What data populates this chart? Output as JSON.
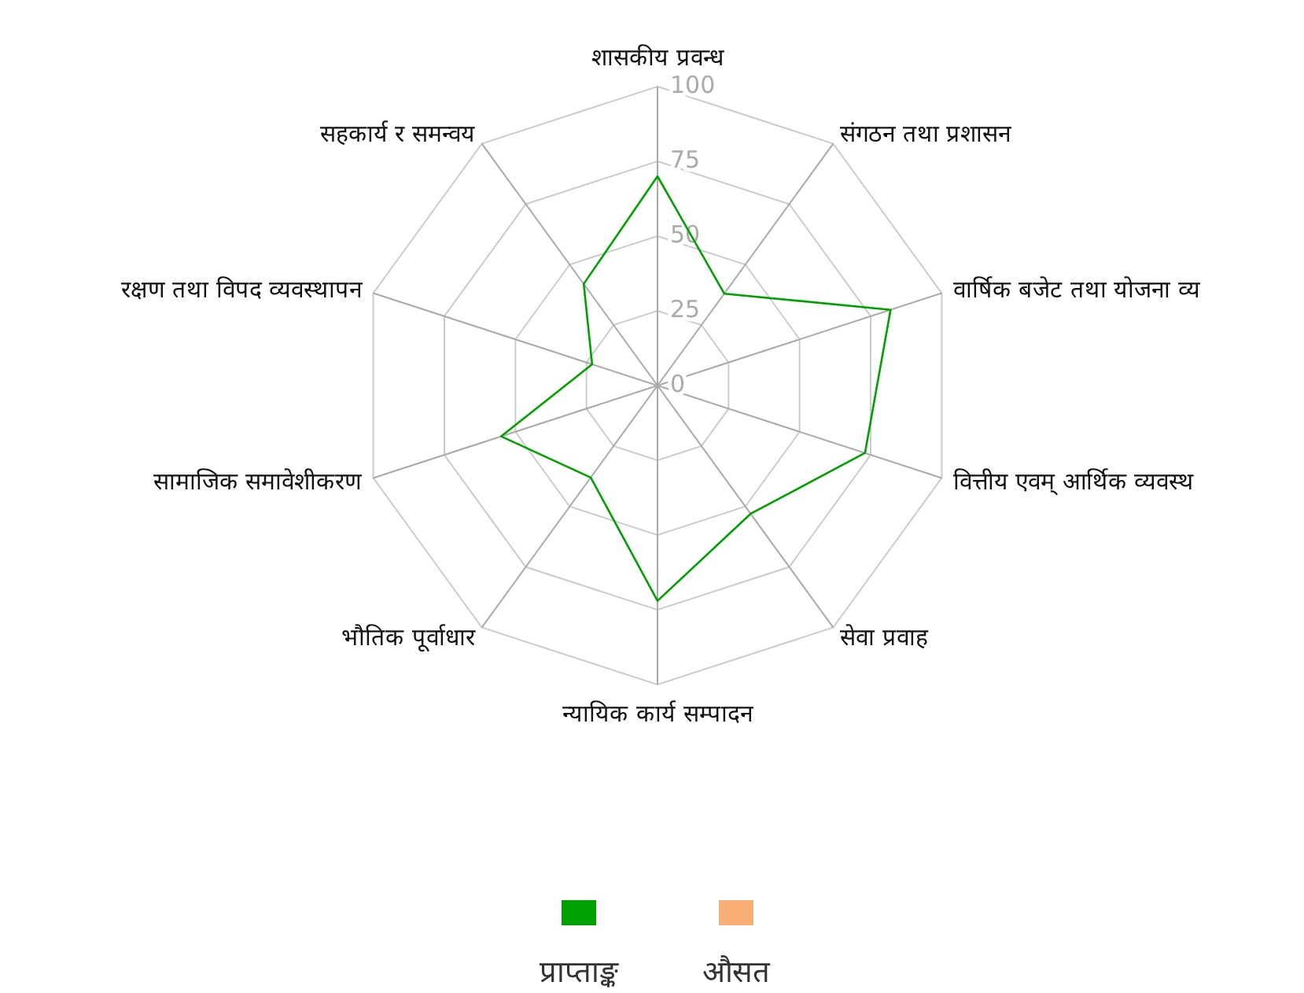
{
  "chart_data": {
    "type": "radar",
    "categories": [
      "शासकीय प्रवन्ध",
      "संगठन तथा प्रशासन",
      "वार्षिक बजेट तथा योजना व्य",
      "वित्तीय एवम् आर्थिक व्यवस्थ",
      "सेवा प्रवाह",
      "न्यायिक कार्य सम्पादन",
      "भौतिक पूर्वाधार",
      "सामाजिक समावेशीकरण",
      "रक्षण तथा विपद व्यवस्थापन",
      "सहकार्य र समन्वय"
    ],
    "series": [
      {
        "name": "प्राप्ताङ्क",
        "color": "#00a000",
        "values": [
          70,
          38,
          82,
          73,
          53,
          72,
          38,
          55,
          23,
          42
        ]
      },
      {
        "name": "औसत",
        "color": "#f9ae74",
        "values": [
          null,
          null,
          null,
          null,
          null,
          null,
          null,
          null,
          null,
          null
        ]
      }
    ],
    "ylim": [
      0,
      100
    ],
    "yticks": [
      0,
      25,
      50,
      75,
      100
    ],
    "grid": true,
    "legend": "bottom",
    "marker": "none"
  }
}
